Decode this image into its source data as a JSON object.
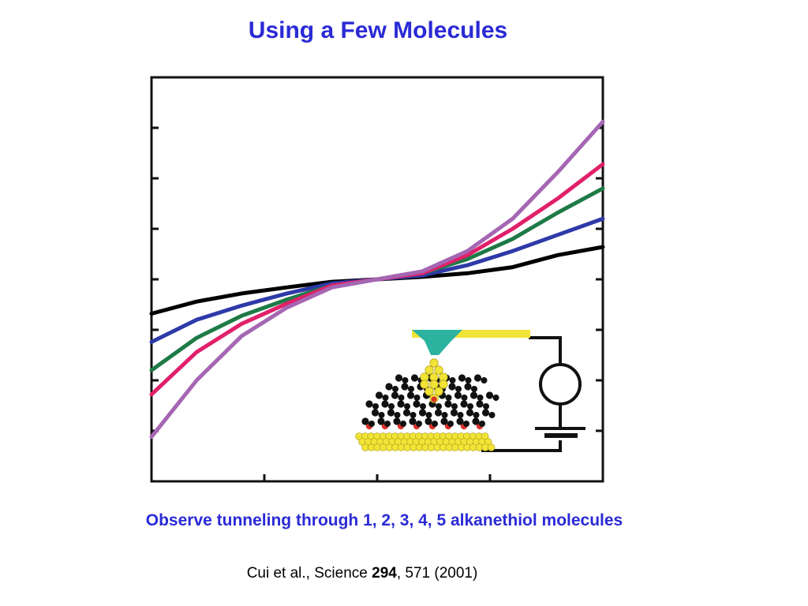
{
  "title": "Using a Few Molecules",
  "caption": "Observe tunneling through  1, 2, 3, 4, 5  alkanethiol molecules",
  "citation": {
    "prefix": "Cui et al., Science ",
    "volume": "294",
    "suffix": ", 571 (2001)"
  },
  "colors": {
    "title": "#2a2ad6",
    "caption": "#2a2ad6",
    "tip": "#2bb3a0",
    "gold_atom": "#f2e436",
    "sulfur_atom": "#d9302a",
    "carbon_atom": "#111111"
  },
  "icons": {
    "meter": "ammeter-circle-icon",
    "battery": "battery-icon"
  },
  "chart_data": {
    "type": "line",
    "title": "",
    "xlabel": "",
    "ylabel": "",
    "xlim": [
      -1,
      1
    ],
    "ylim": [
      -1,
      1
    ],
    "grid": false,
    "series": [
      {
        "color": "#000000",
        "molecules": 1,
        "x": [
          -1,
          -0.8,
          -0.6,
          -0.4,
          -0.2,
          0,
          0.2,
          0.4,
          0.6,
          0.8,
          1
        ],
        "y": [
          -0.17,
          -0.11,
          -0.07,
          -0.04,
          -0.012,
          0,
          0.012,
          0.03,
          0.06,
          0.12,
          0.16
        ]
      },
      {
        "color": "#2e3aa8",
        "molecules": 2,
        "x": [
          -1,
          -0.8,
          -0.6,
          -0.4,
          -0.2,
          0,
          0.2,
          0.4,
          0.6,
          0.8,
          1
        ],
        "y": [
          -0.31,
          -0.2,
          -0.13,
          -0.07,
          -0.02,
          0,
          0.02,
          0.07,
          0.14,
          0.22,
          0.3
        ]
      },
      {
        "color": "#1e7a46",
        "molecules": 3,
        "x": [
          -1,
          -0.8,
          -0.6,
          -0.4,
          -0.2,
          0,
          0.2,
          0.4,
          0.6,
          0.8,
          1
        ],
        "y": [
          -0.45,
          -0.29,
          -0.18,
          -0.1,
          -0.03,
          0,
          0.03,
          0.1,
          0.2,
          0.33,
          0.45
        ]
      },
      {
        "color": "#e0206a",
        "molecules": 4,
        "x": [
          -1,
          -0.8,
          -0.6,
          -0.4,
          -0.2,
          0,
          0.2,
          0.4,
          0.6,
          0.8,
          1
        ],
        "y": [
          -0.57,
          -0.36,
          -0.22,
          -0.12,
          -0.03,
          0,
          0.03,
          0.12,
          0.25,
          0.4,
          0.57
        ]
      },
      {
        "color": "#a566b3",
        "molecules": 5,
        "x": [
          -1,
          -0.8,
          -0.6,
          -0.4,
          -0.2,
          0,
          0.2,
          0.4,
          0.6,
          0.8,
          1
        ],
        "y": [
          -0.78,
          -0.5,
          -0.28,
          -0.14,
          -0.04,
          0,
          0.04,
          0.14,
          0.3,
          0.53,
          0.78
        ]
      }
    ]
  }
}
